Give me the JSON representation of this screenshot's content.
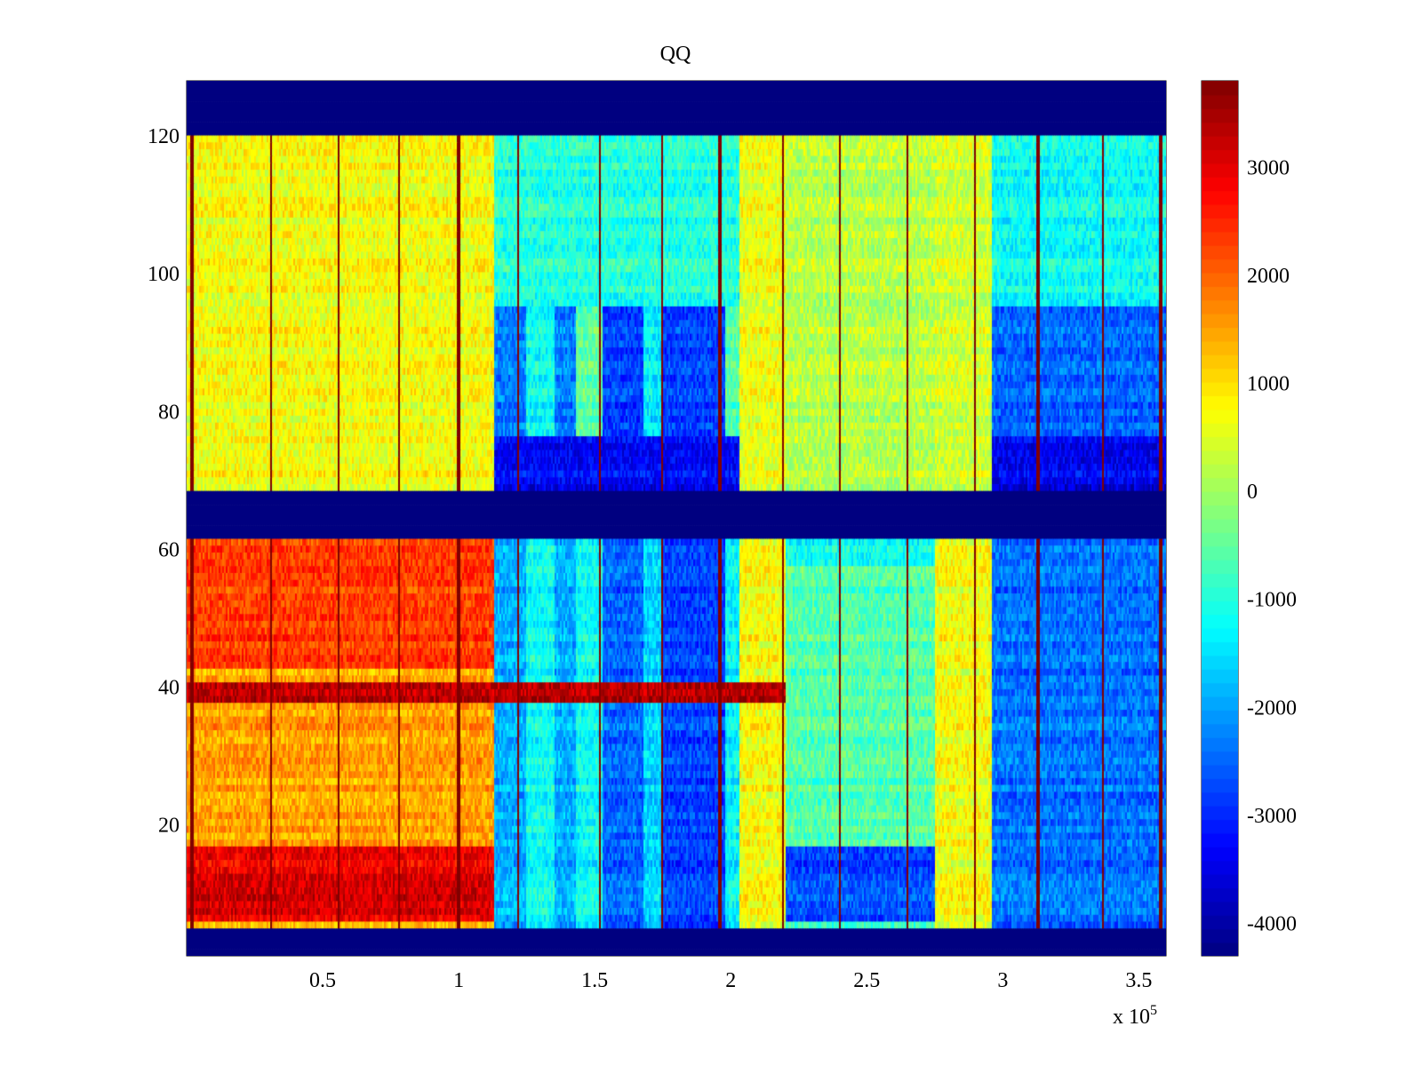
{
  "chart_data": {
    "type": "heatmap",
    "title": "QQ",
    "xlabel": "",
    "ylabel": "",
    "x_multiplier": "x 10",
    "x_multiplier_exponent": "5",
    "xlim": [
      0,
      360000
    ],
    "ylim": [
      1,
      128
    ],
    "xticks": [
      {
        "value": 0.5,
        "label": "0.5"
      },
      {
        "value": 1,
        "label": "1"
      },
      {
        "value": 1.5,
        "label": "1.5"
      },
      {
        "value": 2,
        "label": "2"
      },
      {
        "value": 2.5,
        "label": "2.5"
      },
      {
        "value": 3,
        "label": "3"
      },
      {
        "value": 3.5,
        "label": "3.5"
      }
    ],
    "yticks": [
      {
        "value": 20,
        "label": "20"
      },
      {
        "value": 40,
        "label": "40"
      },
      {
        "value": 60,
        "label": "60"
      },
      {
        "value": 80,
        "label": "80"
      },
      {
        "value": 100,
        "label": "100"
      },
      {
        "value": 120,
        "label": "120"
      }
    ],
    "colorbar": {
      "colormap": "jet",
      "clim": [
        -4300,
        3800
      ],
      "ticks": [
        {
          "value": 3000,
          "label": "3000"
        },
        {
          "value": 2000,
          "label": "2000"
        },
        {
          "value": 1000,
          "label": "1000"
        },
        {
          "value": 0,
          "label": "0"
        },
        {
          "value": -1000,
          "label": "-1000"
        },
        {
          "value": -2000,
          "label": "-2000"
        },
        {
          "value": -3000,
          "label": "-3000"
        },
        {
          "value": -4000,
          "label": "-4000"
        }
      ]
    },
    "masked_row_bands": [
      {
        "y_from": 1,
        "y_to": 4,
        "value": -4300
      },
      {
        "y_from": 62,
        "y_to": 68,
        "value": -4300
      },
      {
        "y_from": 121,
        "y_to": 128,
        "value": -4300
      }
    ],
    "time_segments_x1e5": [
      {
        "x_from": 0.0,
        "x_to": 1.13,
        "upper_value": 700,
        "lower_value": 1500
      },
      {
        "x_from": 1.13,
        "x_to": 1.25,
        "upper_value": -2300,
        "lower_value": -1900
      },
      {
        "x_from": 1.25,
        "x_to": 1.35,
        "upper_value": -1200,
        "lower_value": -1200
      },
      {
        "x_from": 1.35,
        "x_to": 1.43,
        "upper_value": -2300,
        "lower_value": -1900
      },
      {
        "x_from": 1.43,
        "x_to": 1.53,
        "upper_value": -500,
        "lower_value": -1200
      },
      {
        "x_from": 1.53,
        "x_to": 1.68,
        "upper_value": -2800,
        "lower_value": -2500
      },
      {
        "x_from": 1.68,
        "x_to": 1.75,
        "upper_value": -1400,
        "lower_value": -1600
      },
      {
        "x_from": 1.75,
        "x_to": 1.98,
        "upper_value": -2800,
        "lower_value": -2800
      },
      {
        "x_from": 1.98,
        "x_to": 2.03,
        "upper_value": -600,
        "lower_value": -1300
      },
      {
        "x_from": 2.03,
        "x_to": 2.2,
        "upper_value": 600,
        "lower_value": 700
      },
      {
        "x_from": 2.2,
        "x_to": 2.75,
        "upper_value": 200,
        "lower_value": -600
      },
      {
        "x_from": 2.75,
        "x_to": 2.96,
        "upper_value": 400,
        "lower_value": 700
      },
      {
        "x_from": 2.96,
        "x_to": 3.6,
        "upper_value": -2500,
        "lower_value": -2400
      }
    ],
    "row_anomalies": [
      {
        "y_from": 6,
        "y_to": 16,
        "x_from": 0.0,
        "x_to": 1.13,
        "value": 3000
      },
      {
        "y_from": 6,
        "y_to": 16,
        "x_from": 2.2,
        "x_to": 2.75,
        "value": -2700
      },
      {
        "y_from": 38,
        "y_to": 40,
        "x_from": 0.0,
        "x_to": 2.2,
        "value": 3300
      },
      {
        "y_from": 43,
        "y_to": 61,
        "x_from": 0.0,
        "x_to": 1.13,
        "value": 2300
      },
      {
        "y_from": 58,
        "y_to": 61,
        "x_from": 2.2,
        "x_to": 2.75,
        "value": -1200
      },
      {
        "y_from": 69,
        "y_to": 76,
        "x_from": 1.13,
        "x_to": 2.03,
        "value": -3300
      },
      {
        "y_from": 69,
        "y_to": 76,
        "x_from": 2.96,
        "x_to": 3.6,
        "value": -3400
      },
      {
        "y_from": 96,
        "y_to": 121,
        "x_from": 1.13,
        "x_to": 2.03,
        "value": -1000
      },
      {
        "y_from": 96,
        "y_to": 121,
        "x_from": 2.96,
        "x_to": 3.6,
        "value": -1200
      }
    ],
    "spike_columns_x1e5": [
      0.02,
      0.31,
      0.56,
      0.78,
      1.0,
      1.22,
      1.52,
      1.75,
      1.96,
      2.19,
      2.4,
      2.65,
      2.9,
      3.13,
      3.37,
      3.58
    ]
  }
}
